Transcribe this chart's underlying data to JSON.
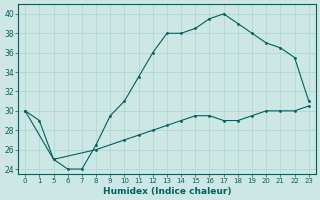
{
  "xlabel": "Humidex (Indice chaleur)",
  "bg_color": "#cde8e4",
  "line_color": "#006060",
  "grid_color": "#b0d8d4",
  "ylim": [
    23.5,
    41
  ],
  "yticks": [
    24,
    26,
    28,
    30,
    32,
    34,
    36,
    38,
    40
  ],
  "tick_labels": [
    "0",
    "1",
    "5",
    "6",
    "7",
    "8",
    "9",
    "10",
    "11",
    "12",
    "13",
    "14",
    "15",
    "16",
    "17",
    "18",
    "19",
    "20",
    "21",
    "22",
    "23"
  ],
  "tick_positions": [
    0,
    1,
    2,
    3,
    4,
    5,
    6,
    7,
    8,
    9,
    10,
    11,
    12,
    13,
    14,
    15,
    16,
    17,
    18,
    19,
    20
  ],
  "xlim": [
    -0.5,
    20.5
  ],
  "line1_x": [
    0,
    1,
    2,
    3,
    4,
    5,
    6,
    7,
    8,
    9,
    10,
    11,
    12,
    13,
    14,
    15,
    16,
    17,
    18,
    19,
    20
  ],
  "line1_y": [
    30,
    29,
    25,
    24,
    24,
    26.5,
    29.5,
    31,
    33.5,
    36,
    38,
    38,
    38.5,
    39.5,
    40,
    39,
    38,
    37,
    36.5,
    35.5,
    31
  ],
  "line2_x": [
    0,
    2,
    5,
    7,
    8,
    9,
    10,
    11,
    12,
    13,
    14,
    15,
    16,
    17,
    18,
    19,
    20
  ],
  "line2_y": [
    30,
    25,
    26,
    27,
    27.5,
    28,
    28.5,
    29,
    29.5,
    29.5,
    29,
    29,
    29.5,
    30,
    30,
    30,
    30.5
  ]
}
